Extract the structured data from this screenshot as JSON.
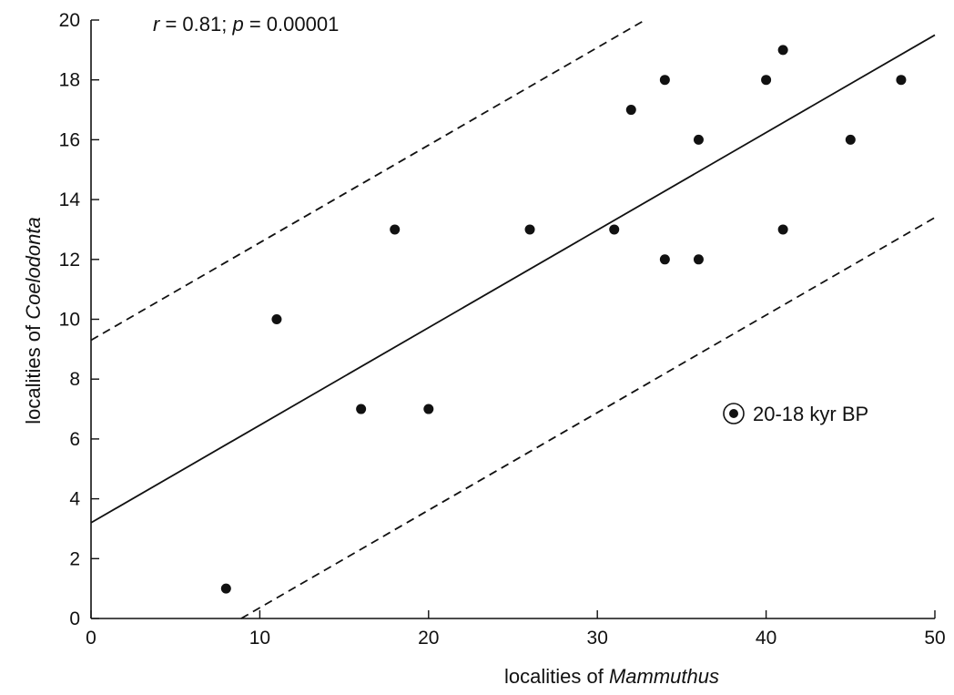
{
  "chart_data": {
    "type": "scatter",
    "title": "",
    "annotation": {
      "r_label": "r",
      "r_value": " = 0.81; ",
      "p_label": "p",
      "p_value": " = 0.00001"
    },
    "xlabel": {
      "prefix": "localities of ",
      "genus": "Mammuthus"
    },
    "ylabel": {
      "prefix": "localities of ",
      "genus": "Coelodonta"
    },
    "xlim": [
      0,
      50
    ],
    "ylim": [
      0,
      20
    ],
    "xticks": [
      "0",
      "10",
      "20",
      "30",
      "40",
      "50"
    ],
    "yticks": [
      "0",
      "2",
      "4",
      "6",
      "8",
      "10",
      "12",
      "14",
      "16",
      "18",
      "20"
    ],
    "grid": false,
    "legend": {
      "label": "20-18  kyr BP",
      "placement": "right-middle"
    },
    "points": [
      {
        "x": 8,
        "y": 1
      },
      {
        "x": 11,
        "y": 10
      },
      {
        "x": 16,
        "y": 7
      },
      {
        "x": 18,
        "y": 13
      },
      {
        "x": 20,
        "y": 7
      },
      {
        "x": 26,
        "y": 13
      },
      {
        "x": 31,
        "y": 13
      },
      {
        "x": 32,
        "y": 17
      },
      {
        "x": 34,
        "y": 18
      },
      {
        "x": 34,
        "y": 12
      },
      {
        "x": 36,
        "y": 16
      },
      {
        "x": 36,
        "y": 12
      },
      {
        "x": 40,
        "y": 18
      },
      {
        "x": 41,
        "y": 19
      },
      {
        "x": 41,
        "y": 13
      },
      {
        "x": 45,
        "y": 16
      },
      {
        "x": 48,
        "y": 18
      }
    ],
    "regression": {
      "intercept": 3.2,
      "slope": 0.326
    },
    "confidence_band": {
      "offset": 6.1
    }
  }
}
